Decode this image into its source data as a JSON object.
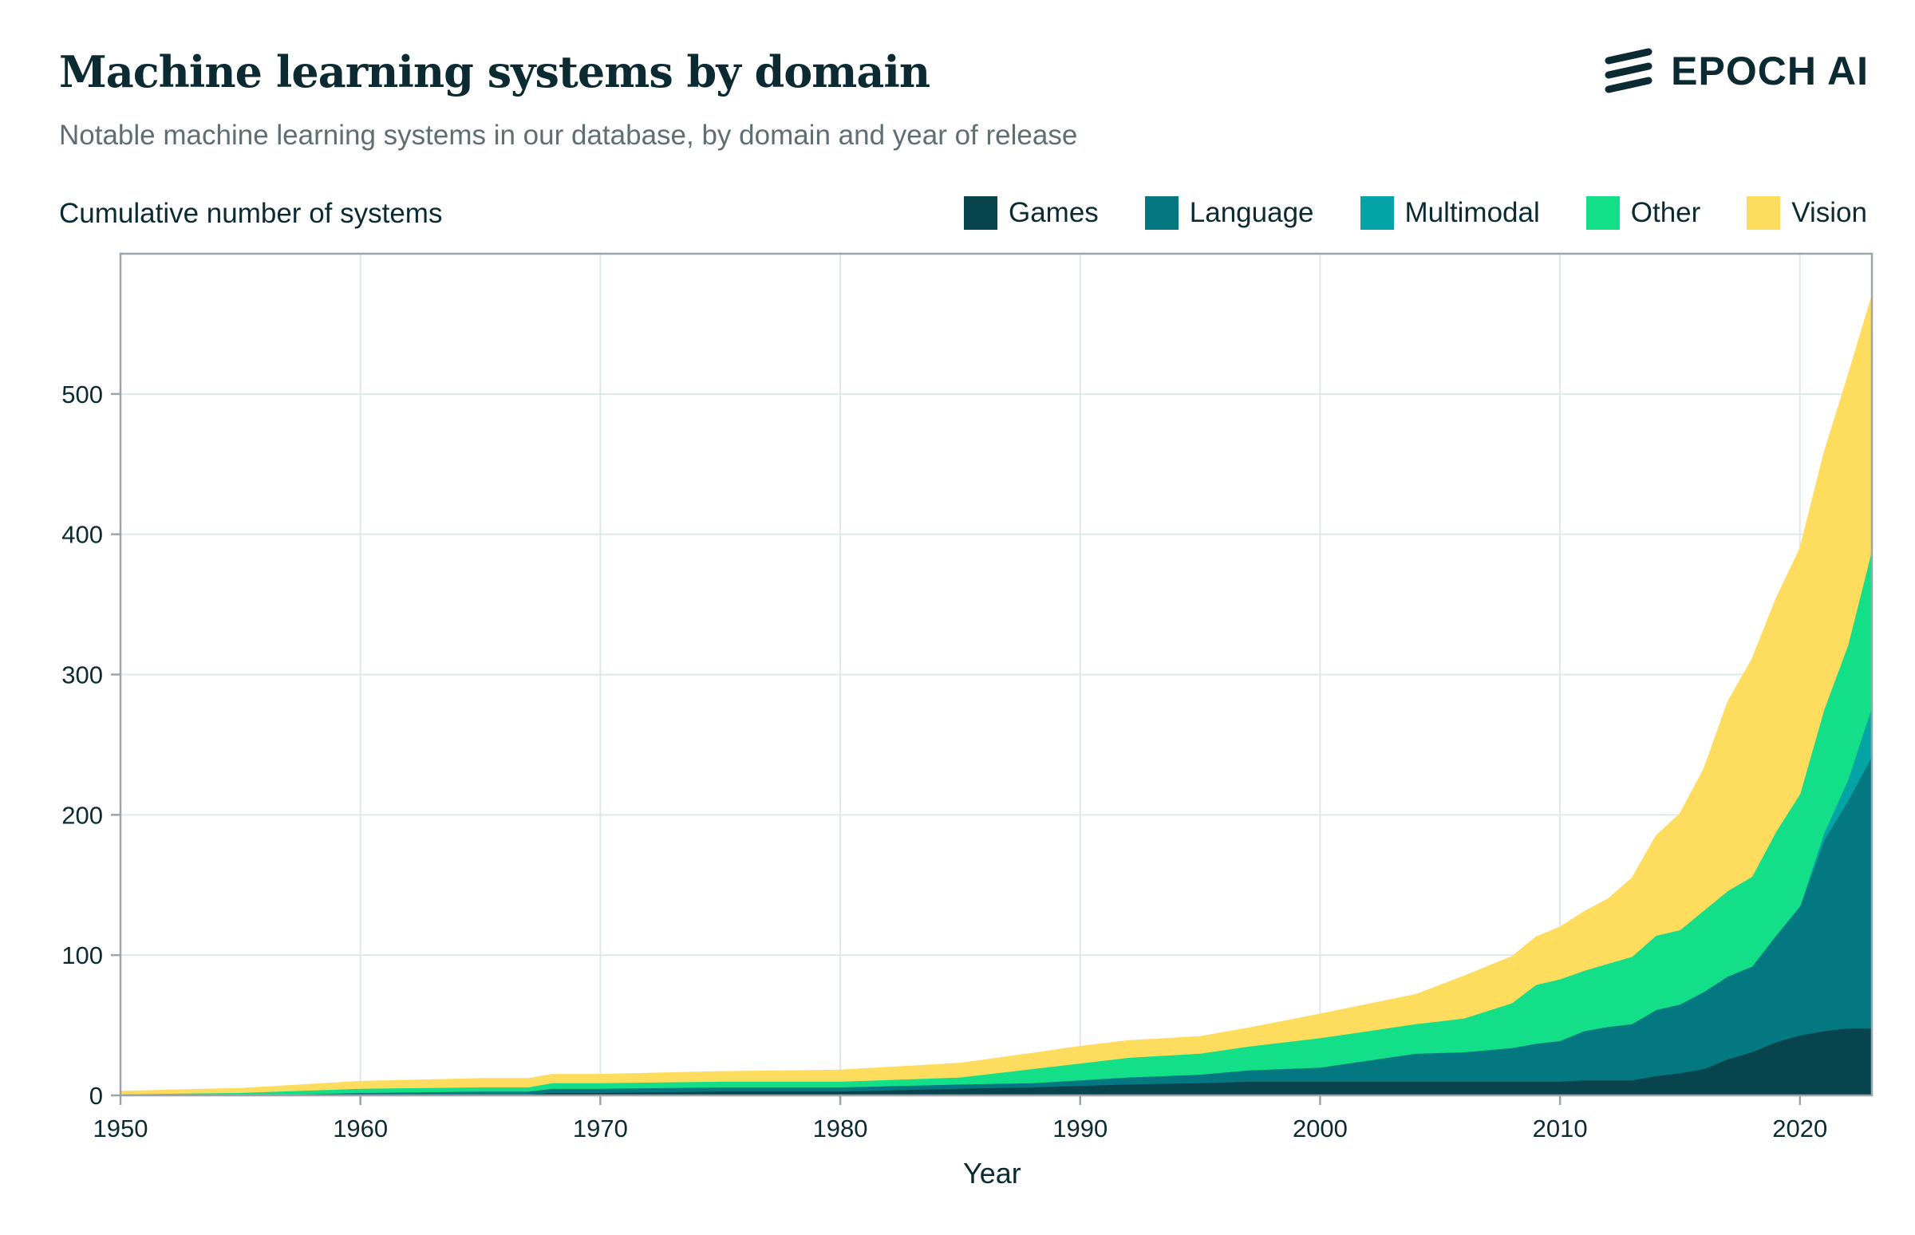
{
  "header": {
    "title": "Machine learning systems by domain",
    "subtitle": "Notable machine learning systems in our database, by domain and year of release",
    "logo_text": "EPOCH AI"
  },
  "colors": {
    "Games": "#07444d",
    "Language": "#037880",
    "Multimodal": "#04a3a6",
    "Other": "#13df89",
    "Vision": "#fedc5d",
    "grid": "#dfe9e9",
    "axis": "#9aa6ab",
    "text": "#0b2a32"
  },
  "chart_data": {
    "type": "area",
    "stacked": true,
    "title": "Machine learning systems by domain",
    "subtitle": "Notable machine learning systems in our database, by domain and year of release",
    "ylabel": "Cumulative number of systems",
    "xlabel": "Year",
    "xlim": [
      1950,
      2023
    ],
    "ylim": [
      0,
      600
    ],
    "xticks": [
      1950,
      1960,
      1970,
      1980,
      1990,
      2000,
      2010,
      2020
    ],
    "yticks": [
      0,
      100,
      200,
      300,
      400,
      500
    ],
    "grid": true,
    "legend": "top-right",
    "x": [
      1950,
      1955,
      1960,
      1965,
      1967,
      1968,
      1970,
      1975,
      1980,
      1985,
      1988,
      1990,
      1992,
      1995,
      1997,
      2000,
      2002,
      2004,
      2006,
      2008,
      2009,
      2010,
      2011,
      2012,
      2013,
      2014,
      2015,
      2016,
      2017,
      2018,
      2019,
      2020,
      2021,
      2022,
      2023
    ],
    "series": [
      {
        "name": "Games",
        "values": [
          0,
          0,
          1,
          1,
          1,
          2,
          2,
          3,
          3,
          5,
          6,
          7,
          8,
          9,
          10,
          10,
          10,
          10,
          10,
          10,
          10,
          10,
          11,
          11,
          11,
          14,
          16,
          19,
          26,
          31,
          38,
          43,
          46,
          48,
          48
        ]
      },
      {
        "name": "Language",
        "values": [
          0,
          0,
          1,
          2,
          2,
          3,
          3,
          3,
          3,
          3,
          3,
          4,
          5,
          6,
          8,
          10,
          15,
          20,
          21,
          24,
          27,
          29,
          35,
          38,
          40,
          47,
          49,
          55,
          59,
          61,
          76,
          92,
          136,
          162,
          194
        ]
      },
      {
        "name": "Multimodal",
        "values": [
          0,
          0,
          0,
          0,
          0,
          0,
          0,
          0,
          0,
          0,
          0,
          0,
          0,
          0,
          0,
          0,
          0,
          0,
          0,
          0,
          0,
          0,
          0,
          0,
          0,
          0,
          0,
          0,
          0,
          0,
          0,
          0,
          5,
          15,
          35
        ]
      },
      {
        "name": "Other",
        "values": [
          1,
          2,
          3,
          3,
          3,
          4,
          4,
          4,
          4,
          5,
          10,
          12,
          14,
          15,
          17,
          21,
          21,
          21,
          24,
          32,
          42,
          44,
          43,
          45,
          48,
          53,
          53,
          58,
          61,
          64,
          74,
          80,
          88,
          96,
          112
        ]
      },
      {
        "name": "Vision",
        "values": [
          2,
          3,
          5,
          6,
          6,
          6,
          6,
          7,
          8,
          10,
          11,
          12,
          12,
          12,
          13,
          17,
          19,
          21,
          30,
          33,
          34,
          37,
          42,
          46,
          56,
          71,
          83,
          101,
          135,
          155,
          166,
          175,
          183,
          192,
          181
        ]
      }
    ]
  }
}
